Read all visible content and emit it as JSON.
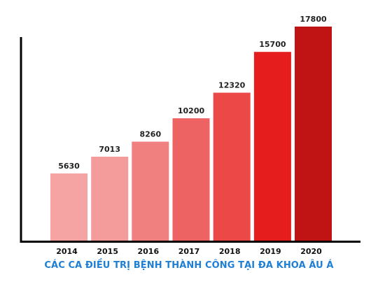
{
  "chart_data": {
    "type": "bar",
    "categories": [
      "2014",
      "2015",
      "2016",
      "2017",
      "2018",
      "2019",
      "2020"
    ],
    "values": [
      5630,
      7013,
      8260,
      10200,
      12320,
      15700,
      17800
    ],
    "data_labels": [
      "5630",
      "7013",
      "8260",
      "10200",
      "12320",
      "15700",
      "17800"
    ],
    "bar_colors": [
      "#f5a3a3",
      "#f49b9b",
      "#f08080",
      "#ed6363",
      "#ec4848",
      "#e51d1d",
      "#c01414"
    ],
    "caption": "CÁC CA ĐIỀU TRỊ BỆNH THÀNH CÔNG TẠI ĐA KHOA ÂU Á",
    "caption_color": "#1f7fd4",
    "axis_color": "#000000",
    "ylim": [
      0,
      17800
    ],
    "grid": false,
    "legend": "none"
  }
}
